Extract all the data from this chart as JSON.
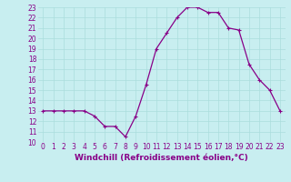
{
  "x": [
    0,
    1,
    2,
    3,
    4,
    5,
    6,
    7,
    8,
    9,
    10,
    11,
    12,
    13,
    14,
    15,
    16,
    17,
    18,
    19,
    20,
    21,
    22,
    23
  ],
  "y": [
    13.0,
    13.0,
    13.0,
    13.0,
    13.0,
    12.5,
    11.5,
    11.5,
    10.5,
    12.5,
    15.5,
    19.0,
    20.5,
    22.0,
    23.0,
    23.0,
    22.5,
    22.5,
    21.0,
    20.8,
    17.5,
    16.0,
    15.0,
    13.0
  ],
  "line_color": "#880088",
  "marker": "+",
  "markersize": 3.5,
  "linewidth": 0.9,
  "xlabel": "Windchill (Refroidissement éolien,°C)",
  "ylim": [
    10,
    23
  ],
  "xlim": [
    -0.5,
    23.5
  ],
  "yticks": [
    10,
    11,
    12,
    13,
    14,
    15,
    16,
    17,
    18,
    19,
    20,
    21,
    22,
    23
  ],
  "xticks": [
    0,
    1,
    2,
    3,
    4,
    5,
    6,
    7,
    8,
    9,
    10,
    11,
    12,
    13,
    14,
    15,
    16,
    17,
    18,
    19,
    20,
    21,
    22,
    23
  ],
  "bg_color": "#c8eef0",
  "grid_color": "#aadddd",
  "tick_color": "#880088",
  "xlabel_color": "#880088",
  "xlabel_fontsize": 6.5,
  "tick_fontsize": 5.5
}
